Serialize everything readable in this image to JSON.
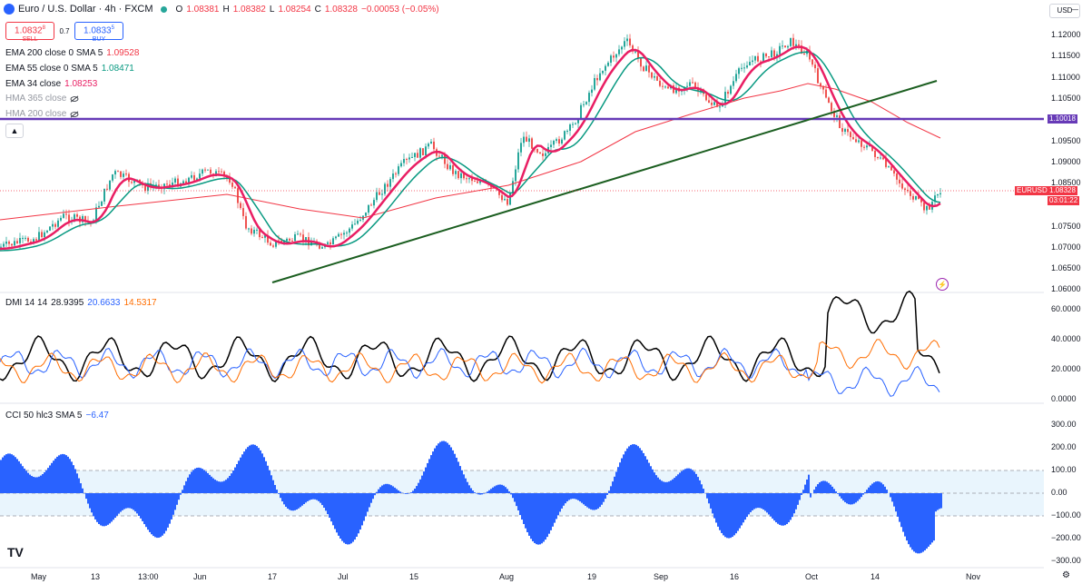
{
  "header": {
    "symbol": "Euro / U.S. Dollar · 4h · FXCM",
    "open_label": "O",
    "open": "1.08381",
    "high_label": "H",
    "high": "1.08382",
    "low_label": "L",
    "low": "1.08254",
    "close_label": "C",
    "close": "1.08328",
    "change": "−0.00053 (−0.05%)"
  },
  "trade": {
    "sell_price": "1.0832",
    "sell_sup": "8",
    "sell_label": "SELL",
    "spread": "0.7",
    "buy_price": "1.0833",
    "buy_sup": "5",
    "buy_label": "BUY"
  },
  "indicators": [
    {
      "label": "EMA 200 close 0 SMA 5",
      "value": "1.09528",
      "color": "#f23645"
    },
    {
      "label": "EMA 55 close 0 SMA 5",
      "value": "1.08471",
      "color": "#089981"
    },
    {
      "label": "EMA 34 close",
      "value": "1.08253",
      "color": "#e91e63"
    },
    {
      "label": "HMA 365 close",
      "value": "",
      "color": "#9598a1"
    },
    {
      "label": "HMA 200 close",
      "value": "",
      "color": "#9598a1"
    }
  ],
  "currency_button": "USD",
  "price_axis": [
    "1.12000",
    "1.11500",
    "1.11000",
    "1.10500",
    "1.09500",
    "1.09000",
    "1.08500",
    "1.07500",
    "1.07000",
    "1.06500",
    "1.06000"
  ],
  "hline_label": "1.10018",
  "eurusd_tag": "EURUSD",
  "last_price_tag": "1.08328",
  "countdown_tag": "03:01:22",
  "dmi": {
    "label": "DMI 14 14",
    "adx": "28.9395",
    "plus": "20.6633",
    "minus": "14.5317",
    "axis": [
      "60.0000",
      "40.0000",
      "20.0000",
      "0.0000"
    ]
  },
  "cci": {
    "label": "CCI 50 hlc3 SMA 5",
    "value": "−6.47",
    "axis": [
      "300.00",
      "200.00",
      "100.00",
      "0.00",
      "−100.00",
      "−200.00",
      "−300.00"
    ]
  },
  "time_axis": [
    "May",
    "13",
    "13:00",
    "Jun",
    "17",
    "Jul",
    "15",
    "Aug",
    "19",
    "Sep",
    "16",
    "Oct",
    "14",
    "Nov"
  ],
  "colors": {
    "up": "#26a69a",
    "down": "#ef5350",
    "ema34": "#e91e63",
    "ema55": "#089981",
    "ema200": "#f23645",
    "hline": "#673ab7",
    "trend": "#1b5e20",
    "dmi_adx": "#000000",
    "dmi_plus": "#2962ff",
    "dmi_minus": "#ff6d00",
    "cci": "#2962ff"
  },
  "icons": {
    "settings": "gear-icon",
    "chevron": "chevron-up-icon",
    "alert": "flash-icon",
    "logo": "tradingview-logo"
  },
  "logo_text": "TV"
}
